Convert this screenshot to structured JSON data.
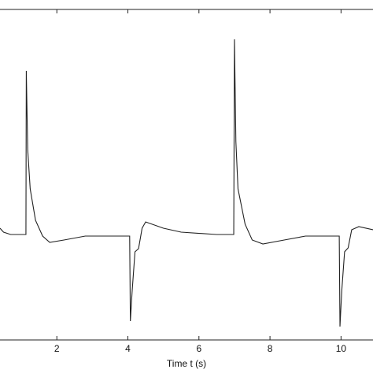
{
  "chart_data": {
    "type": "line",
    "x_label": "Time t (s)",
    "xlim": [
      0.4,
      10.9
    ],
    "xticks": [
      2,
      4,
      6,
      8,
      10
    ],
    "ylim": [
      0,
      42
    ],
    "series": [
      {
        "color": "#222222",
        "x": [
          0.4,
          0.5,
          0.7,
          1.1,
          1.13,
          1.14,
          1.18,
          1.25,
          1.4,
          1.6,
          1.8,
          2.2,
          2.8,
          3.5,
          4.05,
          4.07,
          4.12,
          4.2,
          4.3,
          4.4,
          4.5,
          5.0,
          5.5,
          6.5,
          6.98,
          7.0,
          7.04,
          7.1,
          7.3,
          7.5,
          7.8,
          8.4,
          9.0,
          9.95,
          9.97,
          10.02,
          10.1,
          10.2,
          10.3,
          10.5,
          10.9
        ],
        "values": [
          14.2,
          13.7,
          13.4,
          13.4,
          13.4,
          34.2,
          24.2,
          19.2,
          15.2,
          13.2,
          12.4,
          12.7,
          13.2,
          13.2,
          13.2,
          2.4,
          6.2,
          11.2,
          11.6,
          14.2,
          15.0,
          14.2,
          13.7,
          13.4,
          13.4,
          38.2,
          25.2,
          19.2,
          14.7,
          12.7,
          12.2,
          12.7,
          13.2,
          13.2,
          1.7,
          6.2,
          11.2,
          11.7,
          14.0,
          14.4,
          14.0
        ]
      }
    ]
  }
}
